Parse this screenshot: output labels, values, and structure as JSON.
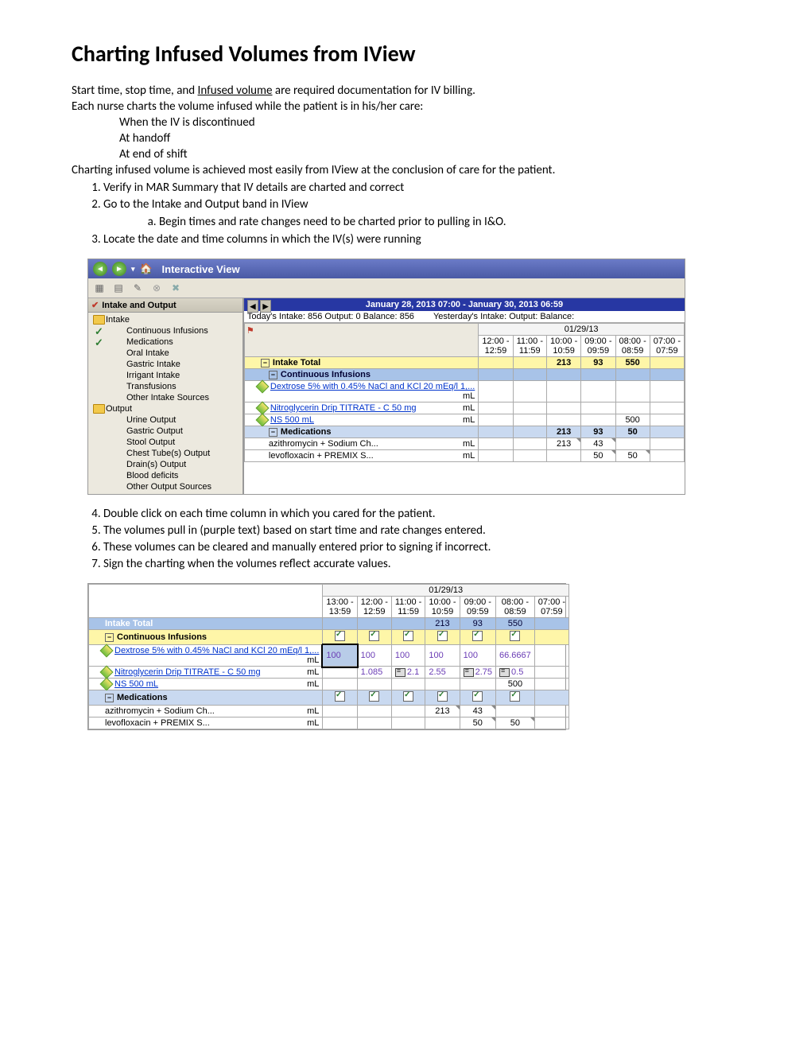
{
  "title": "Charting Infused Volumes from IView",
  "intro": {
    "line1a": "Start time, stop time, and ",
    "line1b": "Infused volume",
    "line1c": " are required documentation for IV billing.",
    "line2": "Each nurse charts the volume infused while the patient is in his/her care:",
    "bullets": [
      "When the IV is discontinued",
      "At handoff",
      "At end of shift"
    ],
    "line3": "Charting infused volume is achieved most easily from IView at the conclusion of care for the patient."
  },
  "steps1": {
    "s1": "Verify in MAR Summary that IV details are charted and correct",
    "s2": "Go to the Intake and Output band in IView",
    "s2a": "Begin times and rate changes need to be charted prior to pulling in I&O.",
    "s3": "Locate the date and time columns in which the IV(s) were running"
  },
  "iview": {
    "title": "Interactive View",
    "date_range": "January 28, 2013 07:00 - January 30, 2013 06:59",
    "today": "Today's  Intake: 856 Output: 0 Balance: 856",
    "yesterday": "Yesterday's  Intake:  Output:  Balance:",
    "band_header": "Intake and Output",
    "sidebar": [
      "Intake",
      "Continuous Infusions",
      "Medications",
      "Oral Intake",
      "Gastric Intake",
      "Irrigant Intake",
      "Transfusions",
      "Other Intake Sources",
      "Output",
      "Urine Output",
      "Gastric Output",
      "Stool Output",
      "Chest Tube(s) Output",
      "Drain(s) Output",
      "Blood deficits",
      "Other Output Sources"
    ],
    "date_header": "01/29/13",
    "time_cols": [
      "12:00 - 12:59",
      "11:00 - 11:59",
      "10:00 - 10:59",
      "09:00 - 09:59",
      "08:00 - 08:59",
      "07:00 - 07:59"
    ],
    "rows": {
      "intake_total": "Intake Total",
      "cont_inf": "Continuous Infusions",
      "dextrose": "Dextrose 5% with 0.45% NaCl and KCl 20 mEq/l 1,...",
      "nitro": "Nitroglycerin Drip TITRATE - C 50 mg",
      "ns": "NS 500 mL",
      "meds": "Medications",
      "azithro": "azithromycin + Sodium Ch...",
      "levo": "levofloxacin + PREMIX S...",
      "unit": "mL"
    },
    "data": {
      "intake_total": [
        "",
        "",
        "213",
        "93",
        "550",
        ""
      ],
      "ns": [
        "",
        "",
        "",
        "",
        "500",
        ""
      ],
      "meds": [
        "",
        "",
        "213",
        "93",
        "50",
        ""
      ],
      "azithro": [
        "",
        "",
        "213",
        "43",
        "",
        ""
      ],
      "levo": [
        "",
        "",
        "",
        "50",
        "50",
        ""
      ]
    }
  },
  "steps2": {
    "s4": "Double click on each time column in which you cared for the patient.",
    "s5": "The volumes pull in (purple text) based on start time and rate changes entered.",
    "s6": "These volumes can be cleared and manually entered prior to signing if incorrect.",
    "s7": "Sign the charting when the volumes reflect accurate values."
  },
  "iview2": {
    "date_header": "01/29/13",
    "time_cols": [
      "13:00 - 13:59",
      "12:00 - 12:59",
      "11:00 - 11:59",
      "10:00 - 10:59",
      "09:00 - 09:59",
      "08:00 - 08:59",
      "07:00 - 07:59"
    ],
    "rows": {
      "intake_total": "Intake Total",
      "cont_inf": "Continuous Infusions",
      "dextrose": "Dextrose 5% with 0.45% NaCl and KCl 20 mEq/l 1,...",
      "nitro": "Nitroglycerin Drip TITRATE - C 50 mg",
      "ns": "NS 500 mL",
      "meds": "Medications",
      "azithro": "azithromycin + Sodium Ch...",
      "levo": "levofloxacin + PREMIX S...",
      "unit": "mL"
    },
    "data": {
      "intake_total": [
        "",
        "",
        "",
        "213",
        "93",
        "550",
        ""
      ],
      "dextrose": [
        "100",
        "100",
        "100",
        "100",
        "100",
        "66.6667",
        ""
      ],
      "nitro": [
        "",
        "1.085",
        "2.1",
        "2.55",
        "2.75",
        "0.5",
        ""
      ],
      "ns": [
        "",
        "",
        "",
        "",
        "",
        "500",
        ""
      ],
      "azithro": [
        "",
        "",
        "",
        "213",
        "43",
        "",
        ""
      ],
      "levo": [
        "",
        "",
        "",
        "",
        "50",
        "50",
        ""
      ]
    },
    "nitro_calc_cols": [
      2,
      4,
      5
    ],
    "checked_cols": 6
  },
  "colors": {
    "titlebar": "#4a5aa5",
    "yellow_row": "#fef6a8",
    "blue_row": "#a8c3e8",
    "purple_text": "#6a3cb5",
    "link": "#0033cc"
  }
}
